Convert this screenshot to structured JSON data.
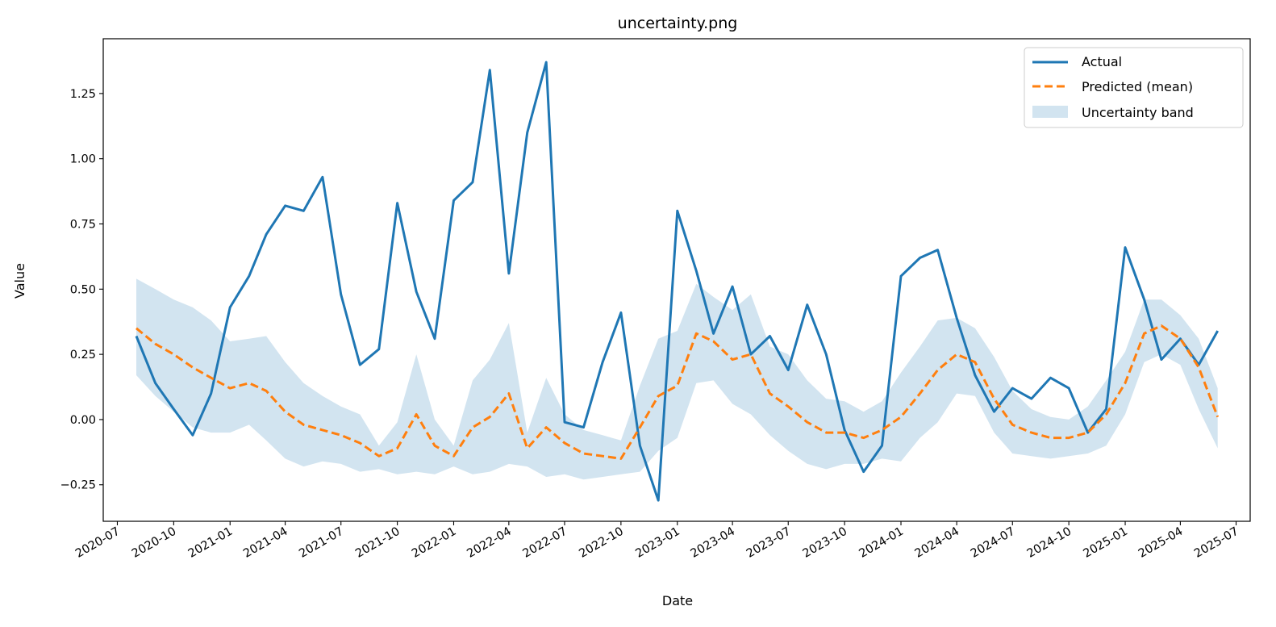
{
  "chart_data": {
    "type": "line",
    "title": "uncertainty.png",
    "xlabel": "Date",
    "ylabel": "Value",
    "xlim": [
      "2020-06-08",
      "2025-07-24"
    ],
    "ylim": [
      -0.39,
      1.46
    ],
    "x_ticks": [
      "2020-07",
      "2020-10",
      "2021-01",
      "2021-04",
      "2021-07",
      "2021-10",
      "2022-01",
      "2022-04",
      "2022-07",
      "2022-10",
      "2023-01",
      "2023-04",
      "2023-07",
      "2023-10",
      "2024-01",
      "2024-04",
      "2024-07",
      "2024-10",
      "2025-01",
      "2025-04",
      "2025-07"
    ],
    "y_ticks": [
      -0.25,
      0.0,
      0.25,
      0.5,
      0.75,
      1.0,
      1.25
    ],
    "y_tick_labels": [
      "−0.25",
      "0.00",
      "0.25",
      "0.50",
      "0.75",
      "1.00",
      "1.25"
    ],
    "grid": false,
    "legend_position": "top-right",
    "x": [
      "2020-08-01",
      "2020-09-01",
      "2020-10-01",
      "2020-11-01",
      "2020-12-01",
      "2021-01-01",
      "2021-02-01",
      "2021-03-01",
      "2021-04-01",
      "2021-05-01",
      "2021-06-01",
      "2021-07-01",
      "2021-08-01",
      "2021-09-01",
      "2021-10-01",
      "2021-11-01",
      "2021-12-01",
      "2022-01-01",
      "2022-02-01",
      "2022-03-01",
      "2022-04-01",
      "2022-05-01",
      "2022-06-01",
      "2022-07-01",
      "2022-08-01",
      "2022-09-01",
      "2022-10-01",
      "2022-11-01",
      "2022-12-01",
      "2023-01-01",
      "2023-02-01",
      "2023-03-01",
      "2023-04-01",
      "2023-05-01",
      "2023-06-01",
      "2023-07-01",
      "2023-08-01",
      "2023-09-01",
      "2023-10-01",
      "2023-11-01",
      "2023-12-01",
      "2024-01-01",
      "2024-02-01",
      "2024-03-01",
      "2024-04-01",
      "2024-05-01",
      "2024-06-01",
      "2024-07-01",
      "2024-08-01",
      "2024-09-01",
      "2024-10-01",
      "2024-11-01",
      "2024-12-01",
      "2025-01-01",
      "2025-02-01",
      "2025-03-01",
      "2025-04-01",
      "2025-05-01",
      "2025-06-01"
    ],
    "series": [
      {
        "name": "Actual",
        "color": "#1f77b4",
        "style": "solid",
        "values": [
          0.32,
          0.14,
          0.04,
          -0.06,
          0.1,
          0.43,
          0.55,
          0.71,
          0.82,
          0.8,
          0.93,
          0.48,
          0.21,
          0.27,
          0.83,
          0.49,
          0.31,
          0.84,
          0.91,
          1.34,
          0.56,
          1.1,
          1.37,
          -0.01,
          -0.03,
          0.22,
          0.41,
          -0.1,
          -0.31,
          0.8,
          0.57,
          0.33,
          0.51,
          0.25,
          0.32,
          0.19,
          0.44,
          0.25,
          -0.04,
          -0.2,
          -0.1,
          0.55,
          0.62,
          0.65,
          0.39,
          0.17,
          0.03,
          0.12,
          0.08,
          0.16,
          0.12,
          -0.05,
          0.04,
          0.66,
          0.46,
          0.23,
          0.31,
          0.21,
          0.34
        ]
      },
      {
        "name": "Predicted (mean)",
        "color": "#ff7f0e",
        "style": "dashed",
        "values": [
          0.35,
          0.29,
          0.25,
          0.2,
          0.16,
          0.12,
          0.14,
          0.11,
          0.03,
          -0.02,
          -0.04,
          -0.06,
          -0.09,
          -0.14,
          -0.11,
          0.02,
          -0.1,
          -0.14,
          -0.03,
          0.01,
          0.1,
          -0.11,
          -0.03,
          -0.09,
          -0.13,
          -0.14,
          -0.15,
          -0.03,
          0.09,
          0.13,
          0.33,
          0.3,
          0.23,
          0.25,
          0.1,
          0.05,
          -0.01,
          -0.05,
          -0.05,
          -0.07,
          -0.04,
          0.01,
          0.1,
          0.19,
          0.25,
          0.22,
          0.08,
          -0.02,
          -0.05,
          -0.07,
          -0.07,
          -0.05,
          0.02,
          0.14,
          0.33,
          0.36,
          0.31,
          0.2,
          0.01
        ]
      }
    ],
    "band": {
      "name": "Uncertainty band",
      "color": "#1f77b4",
      "opacity": 0.2,
      "lower": [
        0.17,
        0.09,
        0.03,
        -0.03,
        -0.05,
        -0.05,
        -0.02,
        -0.08,
        -0.15,
        -0.18,
        -0.16,
        -0.17,
        -0.2,
        -0.19,
        -0.21,
        -0.2,
        -0.21,
        -0.18,
        -0.21,
        -0.2,
        -0.17,
        -0.18,
        -0.22,
        -0.21,
        -0.23,
        -0.22,
        -0.21,
        -0.2,
        -0.12,
        -0.07,
        0.14,
        0.15,
        0.06,
        0.02,
        -0.06,
        -0.12,
        -0.17,
        -0.19,
        -0.17,
        -0.17,
        -0.15,
        -0.16,
        -0.07,
        -0.01,
        0.1,
        0.09,
        -0.05,
        -0.13,
        -0.14,
        -0.15,
        -0.14,
        -0.13,
        -0.1,
        0.02,
        0.22,
        0.25,
        0.21,
        0.04,
        -0.11
      ],
      "upper": [
        0.54,
        0.5,
        0.46,
        0.43,
        0.38,
        0.3,
        0.31,
        0.32,
        0.22,
        0.14,
        0.09,
        0.05,
        0.02,
        -0.1,
        -0.01,
        0.25,
        0.0,
        -0.1,
        0.15,
        0.23,
        0.37,
        -0.05,
        0.16,
        0.02,
        -0.04,
        -0.06,
        -0.08,
        0.13,
        0.31,
        0.34,
        0.52,
        0.47,
        0.42,
        0.48,
        0.28,
        0.25,
        0.15,
        0.08,
        0.07,
        0.03,
        0.07,
        0.18,
        0.28,
        0.38,
        0.39,
        0.35,
        0.24,
        0.11,
        0.04,
        0.01,
        0.0,
        0.05,
        0.15,
        0.26,
        0.46,
        0.46,
        0.4,
        0.31,
        0.12
      ]
    }
  }
}
